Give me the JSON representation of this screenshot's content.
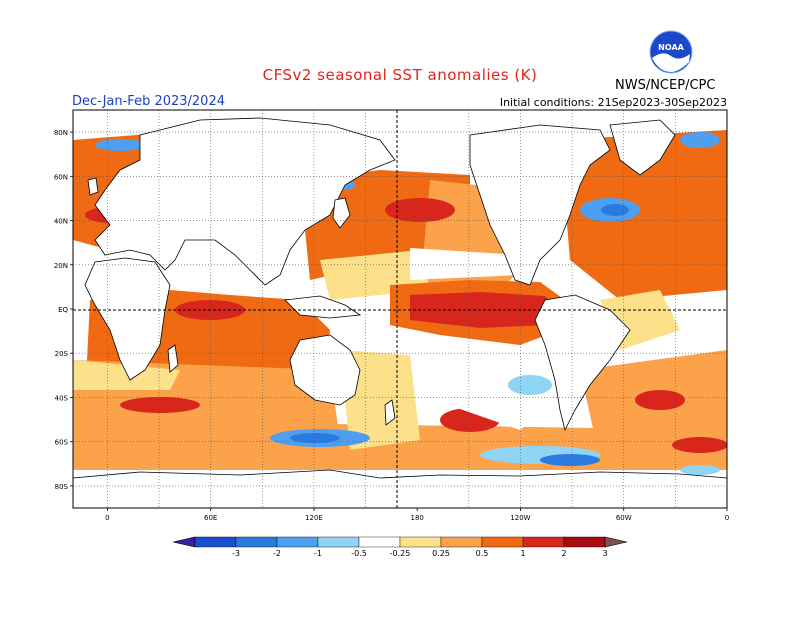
{
  "header": {
    "title": "CFSv2 seasonal SST anomalies (K)",
    "season": "Dec-Jan-Feb 2023/2024",
    "initial_conditions": "Initial conditions: 21Sep2023-30Sep2023",
    "agency": "NWS/NCEP/CPC",
    "logo_text": "NOAA"
  },
  "map": {
    "lat_labels": [
      "80N",
      "60N",
      "40N",
      "20N",
      "EQ",
      "20S",
      "40S",
      "60S",
      "80S"
    ],
    "lon_labels": [
      "0",
      "60E",
      "120E",
      "180",
      "120W",
      "60W",
      "0"
    ],
    "lat_range": [
      -90,
      90
    ],
    "lon_range": [
      -20,
      360
    ]
  },
  "legend": {
    "labels": [
      "-3",
      "-2",
      "-1",
      "-0.5",
      "-0.25",
      "0.25",
      "0.5",
      "1",
      "2",
      "3"
    ],
    "colors": [
      "#3a1fa0",
      "#1b4fd0",
      "#2a7ae0",
      "#4f9ff0",
      "#8fd3f5",
      "#ffffff",
      "#fde08a",
      "#fca24a",
      "#f06a14",
      "#d9261c",
      "#a80c10",
      "#7a5050"
    ]
  },
  "colors": {
    "warm_light": "#fde08a",
    "warm_mid": "#fca24a",
    "warm_strong": "#f06a14",
    "warm_hot": "#d9261c",
    "cool_light": "#8fd3f5",
    "cool_mid": "#4f9ff0",
    "cool_strong": "#1b4fd0"
  }
}
